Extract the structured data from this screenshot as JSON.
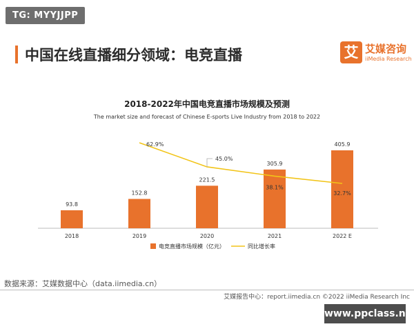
{
  "badge": {
    "text": "TG: MYYJJPP"
  },
  "header": {
    "title": "中国在线直播细分领域：电竞直播"
  },
  "logo": {
    "mark": "艾",
    "name_cn": "艾媒咨询",
    "name_en": "iiMedia Research"
  },
  "chart_data": {
    "type": "bar",
    "title": "2018-2022年中国电竞直播市场规模及预测",
    "subtitle": "The market size and forecast of Chinese E-sports Live Industry from 2018 to 2022",
    "categories": [
      "2018",
      "2019",
      "2020",
      "2021",
      "2022 E"
    ],
    "series": [
      {
        "name": "电竞直播市场规模（亿元）",
        "type": "bar",
        "color": "#e8722c",
        "values": [
          93.8,
          152.8,
          221.5,
          305.9,
          405.9
        ],
        "labels": [
          "93.8",
          "152.8",
          "221.5",
          "305.9",
          "405.9"
        ]
      },
      {
        "name": "同比增长率",
        "type": "line",
        "color": "#f2c418",
        "values": [
          null,
          62.9,
          45.0,
          38.1,
          32.7
        ],
        "labels": [
          "",
          "62.9%",
          "45.0%",
          "38.1%",
          "32.7%"
        ]
      }
    ],
    "legend_position": "bottom",
    "grid": false
  },
  "source": {
    "text": "数据来源：艾媒数据中心（data.iimedia.cn）"
  },
  "footer": {
    "text": "艾媒报告中心：report.iimedia.cn   ©2022  iiMedia Research  Inc"
  },
  "watermark": {
    "text": "www.ppclass.net"
  }
}
